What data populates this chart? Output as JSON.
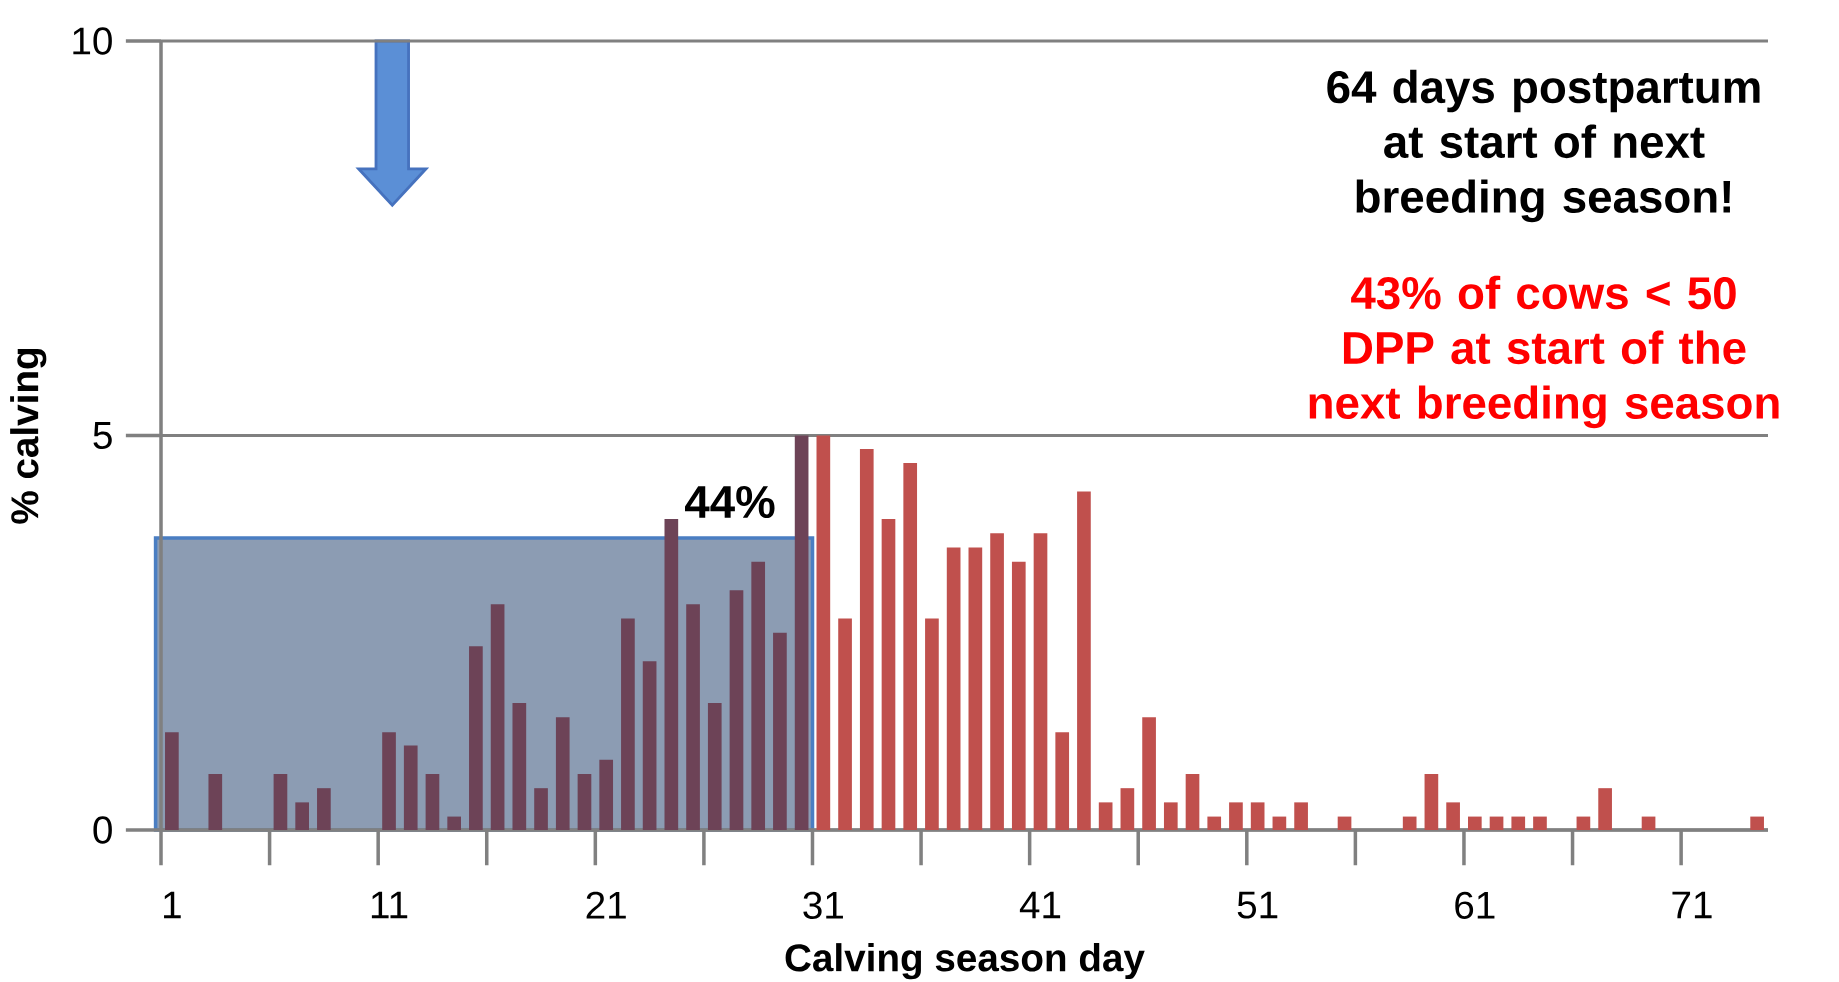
{
  "chart_data": {
    "type": "bar",
    "xlabel": "Calving season day",
    "ylabel": "% calving",
    "categories": [
      "1",
      null,
      null,
      null,
      null,
      null,
      null,
      null,
      null,
      null,
      "11",
      null,
      null,
      null,
      null,
      null,
      null,
      null,
      null,
      null,
      "21",
      null,
      null,
      null,
      null,
      null,
      null,
      null,
      null,
      null,
      "31",
      null,
      null,
      null,
      null,
      null,
      null,
      null,
      null,
      null,
      "41",
      null,
      null,
      null,
      null,
      null,
      null,
      null,
      null,
      null,
      "51",
      null,
      null,
      null,
      null,
      null,
      null,
      null,
      null,
      null,
      "61",
      null,
      null,
      null,
      null,
      null,
      null,
      null,
      null,
      null,
      "71",
      null,
      null,
      null
    ],
    "values": [
      1.24,
      null,
      0.71,
      null,
      null,
      0.71,
      0.35,
      0.53,
      null,
      null,
      1.24,
      1.07,
      0.71,
      0.17,
      2.33,
      2.86,
      1.61,
      0.53,
      1.43,
      0.71,
      0.89,
      2.68,
      2.14,
      3.94,
      2.86,
      1.61,
      3.04,
      3.4,
      2.5,
      5.0,
      5.0,
      2.68,
      4.83,
      3.94,
      4.65,
      2.68,
      3.58,
      3.58,
      3.76,
      3.4,
      3.76,
      1.24,
      4.29,
      0.35,
      0.53,
      1.43,
      0.35,
      0.71,
      0.17,
      0.35,
      0.35,
      0.17,
      0.35,
      null,
      0.17,
      null,
      null,
      0.17,
      0.71,
      0.35,
      0.17,
      0.17,
      0.17,
      0.17,
      null,
      0.17,
      0.53,
      null,
      0.17,
      null,
      null,
      null,
      null,
      0.17
    ],
    "colors": [
      "#6d4357",
      "#6d4357",
      "#6d4357",
      "#6d4357",
      "#6d4357",
      "#6d4357",
      "#6d4357",
      "#6d4357",
      "#6d4357",
      "#6d4357",
      "#6d4357",
      "#6d4357",
      "#6d4357",
      "#6d4357",
      "#6d4357",
      "#6d4357",
      "#6d4357",
      "#6d4357",
      "#6d4357",
      "#6d4357",
      "#6d4357",
      "#6d4357",
      "#6d4357",
      "#6d4357",
      "#6d4357",
      "#6d4357",
      "#6d4357",
      "#6d4357",
      "#6d4357",
      "#6d4357",
      "#c0504d",
      "#c0504d",
      "#c0504d",
      "#c0504d",
      "#c0504d",
      "#c0504d",
      "#c0504d",
      "#c0504d",
      "#c0504d",
      "#c0504d",
      "#c0504d",
      "#c0504d",
      "#c0504d",
      "#c0504d",
      "#c0504d",
      "#c0504d",
      "#c0504d",
      "#c0504d",
      "#c0504d",
      "#c0504d",
      "#c0504d",
      "#c0504d",
      "#c0504d",
      "#c0504d",
      "#c0504d",
      "#c0504d",
      "#c0504d",
      "#c0504d",
      "#c0504d",
      "#c0504d",
      "#c0504d",
      "#c0504d",
      "#c0504d",
      "#c0504d",
      "#c0504d",
      "#c0504d",
      "#c0504d",
      "#c0504d",
      "#c0504d",
      "#c0504d",
      "#c0504d",
      "#c0504d",
      "#c0504d",
      "#c0504d"
    ],
    "ylim": [
      0,
      10
    ],
    "yticks": [
      0,
      5,
      10
    ],
    "grid": "y",
    "annotations": [
      "44%",
      "64 days postpartum at start of next breeding season!",
      "43% of cows < 50 DPP at start of the next breeding season"
    ]
  }
}
